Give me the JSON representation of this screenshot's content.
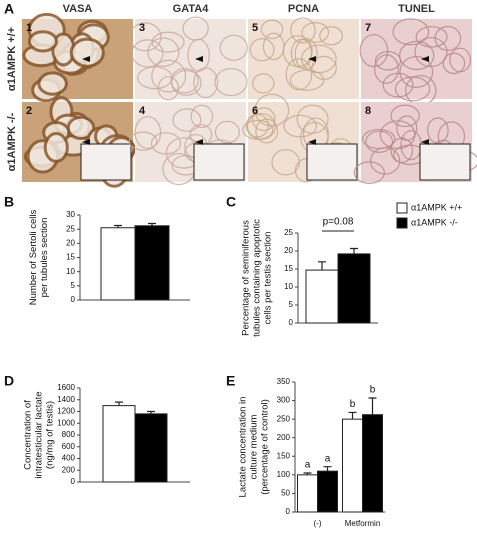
{
  "figure": {
    "panel": "A",
    "columns": [
      "VASA",
      "GATA4",
      "PCNA",
      "TUNEL"
    ],
    "rows": [
      "α1AMPK +/+",
      "α1AMPK -/-"
    ],
    "images": [
      "1",
      "3",
      "5",
      "7",
      "2",
      "4",
      "6",
      "8"
    ]
  },
  "chart_data": [
    {
      "type": "bar",
      "panel": "B",
      "ylabel": [
        "Number of Sertoli cells",
        "per tubules section"
      ],
      "ylim": [
        0,
        30
      ],
      "yticks": [
        0,
        5,
        10,
        15,
        20,
        25,
        30
      ],
      "series": [
        {
          "color": "#ffffff",
          "values": [
            25.5
          ],
          "errors": [
            0.8
          ]
        },
        {
          "color": "#000000",
          "values": [
            26.2
          ],
          "errors": [
            0.8
          ]
        }
      ]
    },
    {
      "type": "bar",
      "panel": "C",
      "ylabel": [
        "Percentage of seminiferous",
        "tubules containing apoptotic",
        "cells per testis section"
      ],
      "ylim": [
        0,
        25
      ],
      "yticks": [
        0,
        5,
        10,
        15,
        20,
        25
      ],
      "annotation": "p=0.08",
      "series": [
        {
          "name": "α1AMPK +/+",
          "color": "#ffffff",
          "values": [
            14.7
          ],
          "errors": [
            2.3
          ]
        },
        {
          "name": "α1AMPK -/-",
          "color": "#000000",
          "values": [
            19.2
          ],
          "errors": [
            1.5
          ]
        }
      ]
    },
    {
      "type": "bar",
      "panel": "D",
      "ylabel": [
        "Concentration of",
        "intratesticular lactate",
        "(ng/mg of testis)"
      ],
      "ylim": [
        0,
        1600
      ],
      "yticks": [
        0,
        200,
        400,
        600,
        800,
        1000,
        1200,
        1400,
        1600
      ],
      "series": [
        {
          "color": "#ffffff",
          "values": [
            1300
          ],
          "errors": [
            60
          ]
        },
        {
          "color": "#000000",
          "values": [
            1160
          ],
          "errors": [
            40
          ]
        }
      ]
    },
    {
      "type": "bar",
      "panel": "E",
      "ylabel": [
        "Lactate concentration in",
        "culture medium",
        "(percentage of control)"
      ],
      "categories": [
        "(-)",
        "Metformin"
      ],
      "ylim": [
        0,
        350
      ],
      "yticks": [
        0,
        50,
        100,
        150,
        200,
        250,
        300,
        350
      ],
      "series": [
        {
          "color": "#ffffff",
          "values": [
            100,
            250
          ],
          "errors": [
            5,
            18
          ],
          "letters": [
            "a",
            "b"
          ]
        },
        {
          "color": "#000000",
          "values": [
            110,
            262
          ],
          "errors": [
            12,
            45
          ],
          "letters": [
            "a",
            "b"
          ]
        }
      ]
    }
  ]
}
